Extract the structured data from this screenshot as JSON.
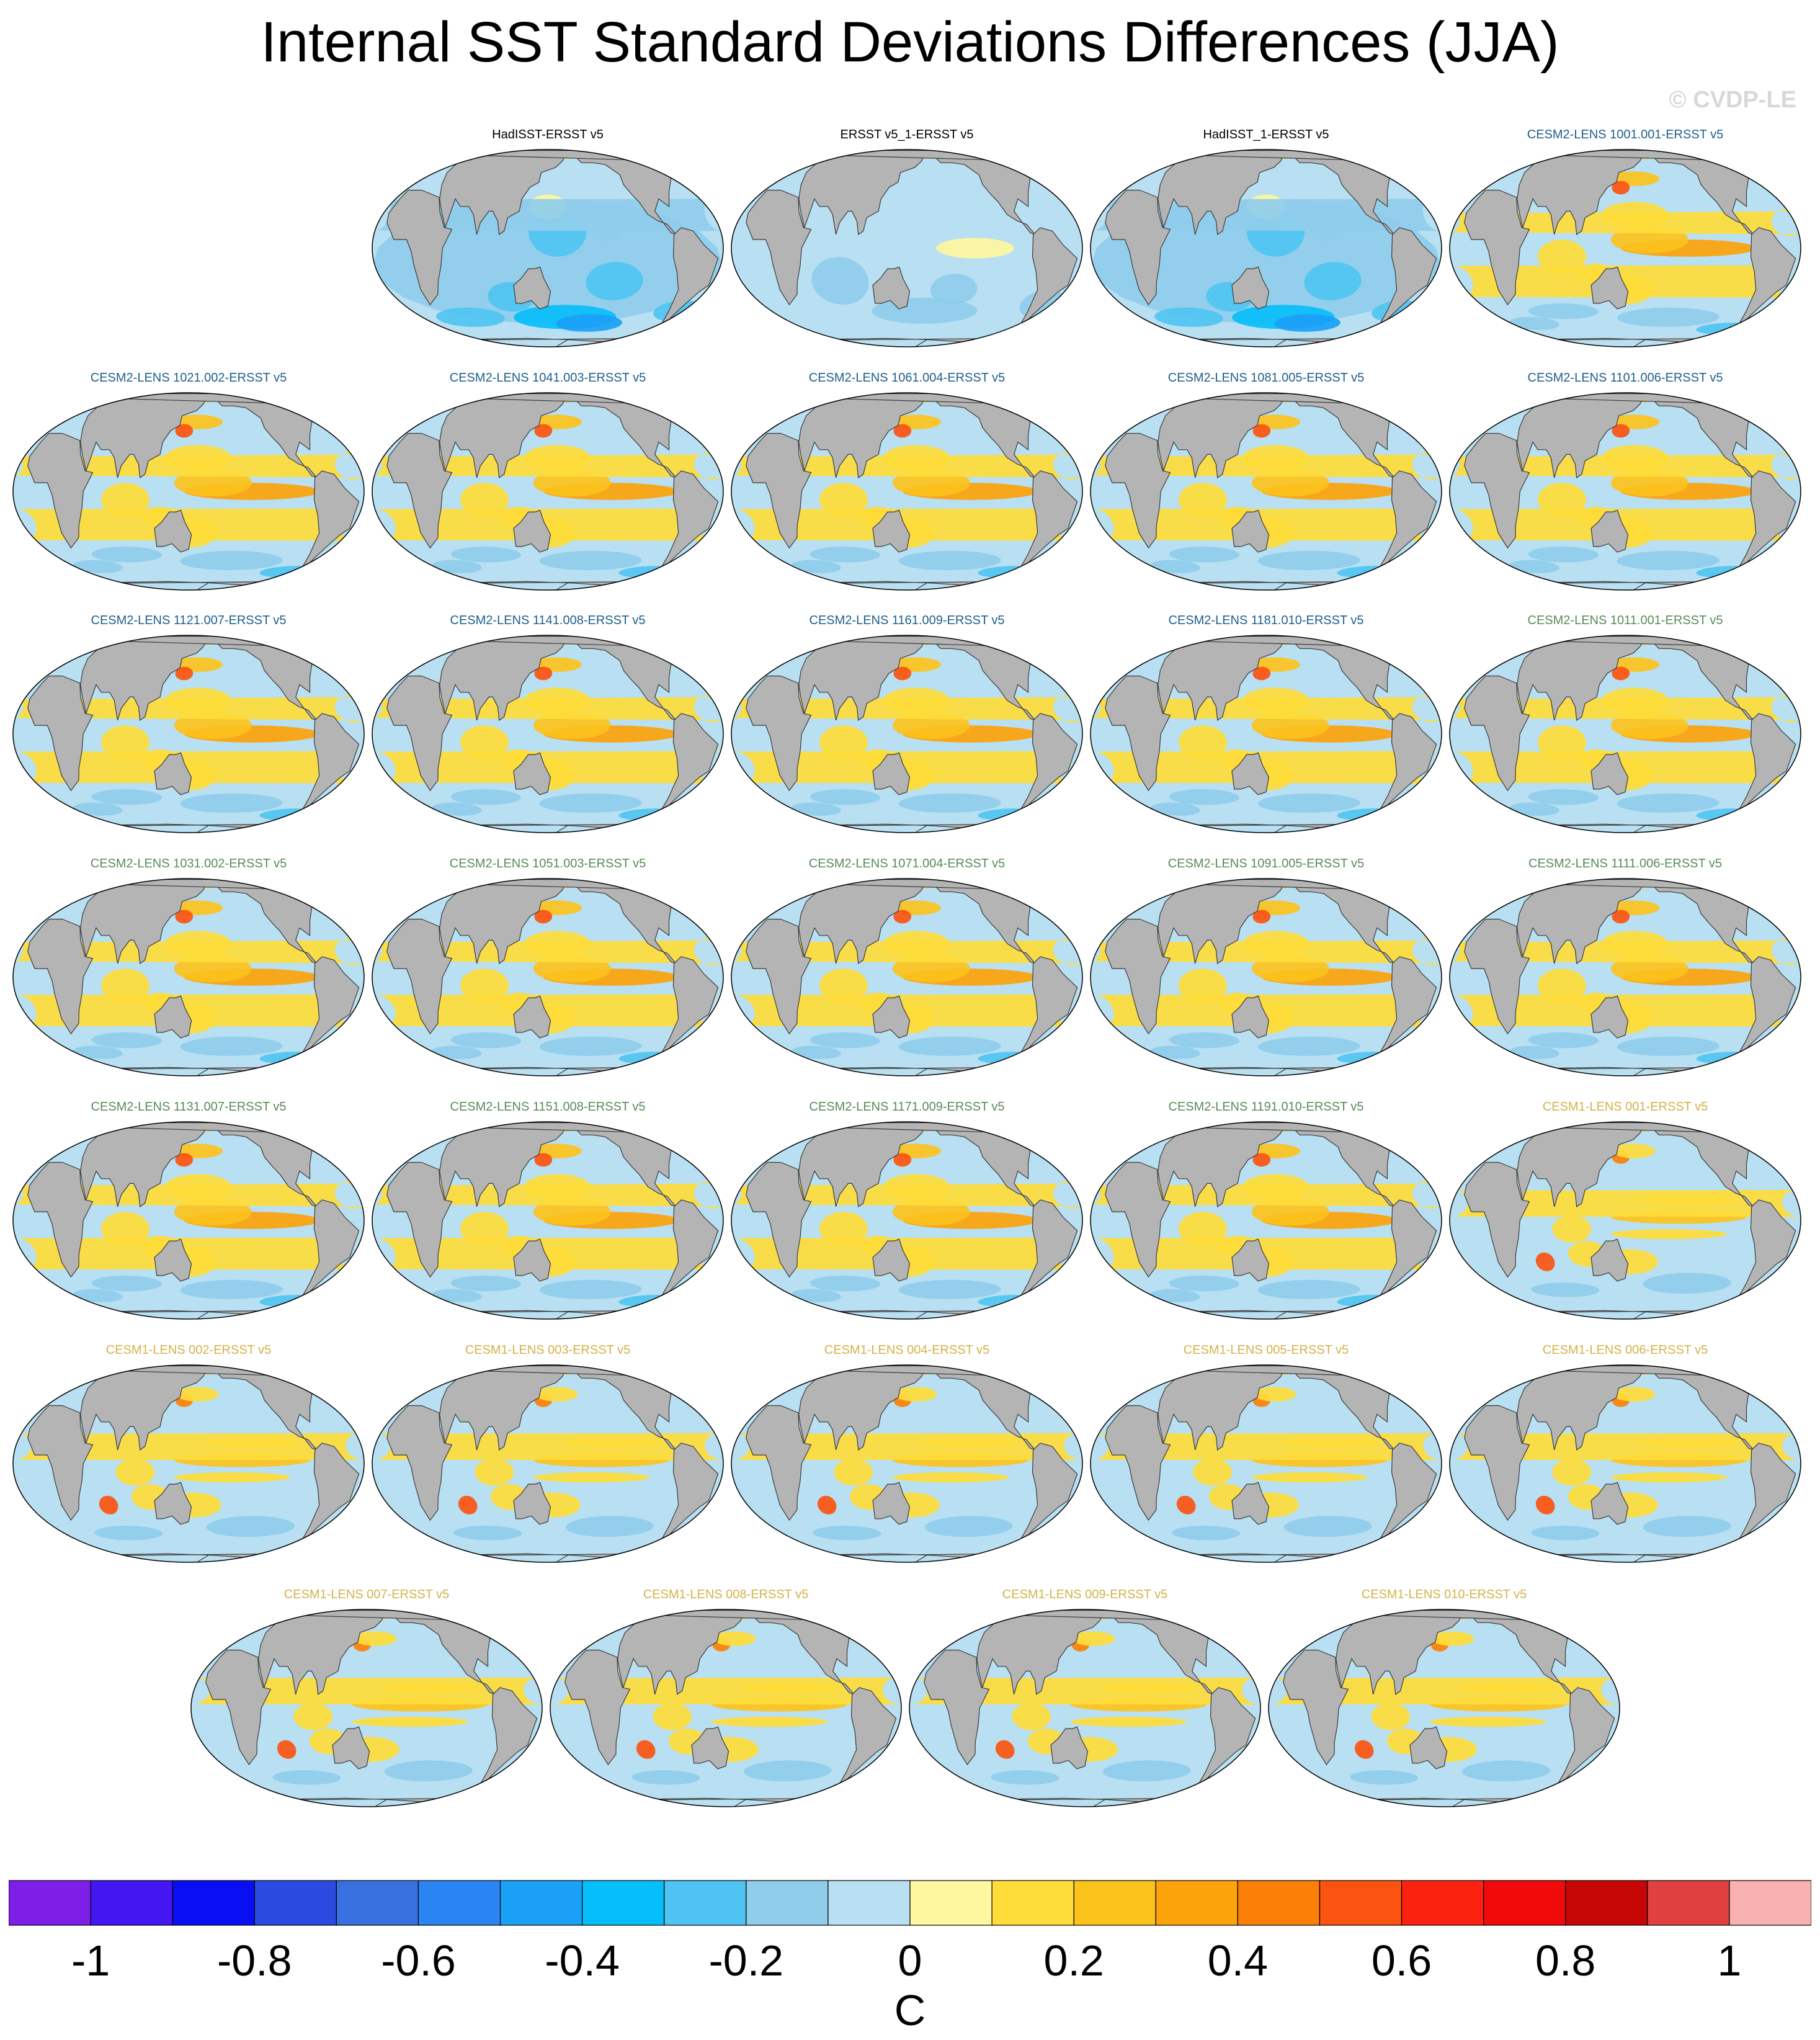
{
  "title": "Internal SST Standard Deviations Differences (JJA)",
  "watermark": "© CVDP-LE",
  "group_colors": {
    "observations": "#000000",
    "cesm2_a": "#1f5f8b",
    "cesm2_b": "#5a8a5a",
    "cesm1": "#d4b24a"
  },
  "panels": [
    {
      "label": "HadISST-ERSST v5",
      "group": "observations",
      "pattern": "obs_cool"
    },
    {
      "label": "ERSST v5_1-ERSST v5",
      "group": "observations",
      "pattern": "obs_mild"
    },
    {
      "label": "HadISST_1-ERSST v5",
      "group": "observations",
      "pattern": "obs_cool"
    },
    {
      "label": "CESM2-LENS 1001.001-ERSST v5",
      "group": "cesm2_a",
      "pattern": "cesm2"
    },
    {
      "label": "CESM2-LENS 1021.002-ERSST v5",
      "group": "cesm2_a",
      "pattern": "cesm2"
    },
    {
      "label": "CESM2-LENS 1041.003-ERSST v5",
      "group": "cesm2_a",
      "pattern": "cesm2"
    },
    {
      "label": "CESM2-LENS 1061.004-ERSST v5",
      "group": "cesm2_a",
      "pattern": "cesm2"
    },
    {
      "label": "CESM2-LENS 1081.005-ERSST v5",
      "group": "cesm2_a",
      "pattern": "cesm2"
    },
    {
      "label": "CESM2-LENS 1101.006-ERSST v5",
      "group": "cesm2_a",
      "pattern": "cesm2"
    },
    {
      "label": "CESM2-LENS 1121.007-ERSST v5",
      "group": "cesm2_a",
      "pattern": "cesm2"
    },
    {
      "label": "CESM2-LENS 1141.008-ERSST v5",
      "group": "cesm2_a",
      "pattern": "cesm2"
    },
    {
      "label": "CESM2-LENS 1161.009-ERSST v5",
      "group": "cesm2_a",
      "pattern": "cesm2"
    },
    {
      "label": "CESM2-LENS 1181.010-ERSST v5",
      "group": "cesm2_a",
      "pattern": "cesm2"
    },
    {
      "label": "CESM2-LENS 1011.001-ERSST v5",
      "group": "cesm2_b",
      "pattern": "cesm2"
    },
    {
      "label": "CESM2-LENS 1031.002-ERSST v5",
      "group": "cesm2_b",
      "pattern": "cesm2"
    },
    {
      "label": "CESM2-LENS 1051.003-ERSST v5",
      "group": "cesm2_b",
      "pattern": "cesm2"
    },
    {
      "label": "CESM2-LENS 1071.004-ERSST v5",
      "group": "cesm2_b",
      "pattern": "cesm2"
    },
    {
      "label": "CESM2-LENS 1091.005-ERSST v5",
      "group": "cesm2_b",
      "pattern": "cesm2"
    },
    {
      "label": "CESM2-LENS 1111.006-ERSST v5",
      "group": "cesm2_b",
      "pattern": "cesm2"
    },
    {
      "label": "CESM2-LENS 1131.007-ERSST v5",
      "group": "cesm2_b",
      "pattern": "cesm2"
    },
    {
      "label": "CESM2-LENS 1151.008-ERSST v5",
      "group": "cesm2_b",
      "pattern": "cesm2"
    },
    {
      "label": "CESM2-LENS 1171.009-ERSST v5",
      "group": "cesm2_b",
      "pattern": "cesm2"
    },
    {
      "label": "CESM2-LENS 1191.010-ERSST v5",
      "group": "cesm2_b",
      "pattern": "cesm2"
    },
    {
      "label": "CESM1-LENS 001-ERSST v5",
      "group": "cesm1",
      "pattern": "cesm1"
    },
    {
      "label": "CESM1-LENS 002-ERSST v5",
      "group": "cesm1",
      "pattern": "cesm1"
    },
    {
      "label": "CESM1-LENS 003-ERSST v5",
      "group": "cesm1",
      "pattern": "cesm1"
    },
    {
      "label": "CESM1-LENS 004-ERSST v5",
      "group": "cesm1",
      "pattern": "cesm1"
    },
    {
      "label": "CESM1-LENS 005-ERSST v5",
      "group": "cesm1",
      "pattern": "cesm1"
    },
    {
      "label": "CESM1-LENS 006-ERSST v5",
      "group": "cesm1",
      "pattern": "cesm1"
    },
    {
      "label": "CESM1-LENS 007-ERSST v5",
      "group": "cesm1",
      "pattern": "cesm1"
    },
    {
      "label": "CESM1-LENS 008-ERSST v5",
      "group": "cesm1",
      "pattern": "cesm1"
    },
    {
      "label": "CESM1-LENS 009-ERSST v5",
      "group": "cesm1",
      "pattern": "cesm1"
    },
    {
      "label": "CESM1-LENS 010-ERSST v5",
      "group": "cesm1",
      "pattern": "cesm1"
    }
  ],
  "colorbar": {
    "units": "C",
    "range": [
      -1.1,
      1.1
    ],
    "step": 0.1,
    "colors": [
      "#7e1fe8",
      "#4316f2",
      "#0a0ef2",
      "#2b4ae0",
      "#3870e0",
      "#2a84f2",
      "#1aa0f7",
      "#06befa",
      "#4fc4f2",
      "#8fcdeb",
      "#b8e0f2",
      "#fff6a0",
      "#fedc3a",
      "#fcc21c",
      "#fca20a",
      "#fb7f06",
      "#fb5310",
      "#fb2310",
      "#f00a0a",
      "#c70606",
      "#e04040",
      "#f8b0b0"
    ],
    "tick_values": [
      -1,
      -0.8,
      -0.6,
      -0.4,
      -0.2,
      0,
      0.2,
      0.4,
      0.6,
      0.8,
      1
    ],
    "tick_labels": [
      "-1",
      "-0.8",
      "-0.6",
      "-0.4",
      "-0.2",
      "0",
      "0.2",
      "0.4",
      "0.6",
      "0.8",
      "1"
    ]
  },
  "map_colors": {
    "land": "#b4b4b4",
    "coast": "#3a3a3a",
    "ocean_base": "#b8e0f2"
  }
}
